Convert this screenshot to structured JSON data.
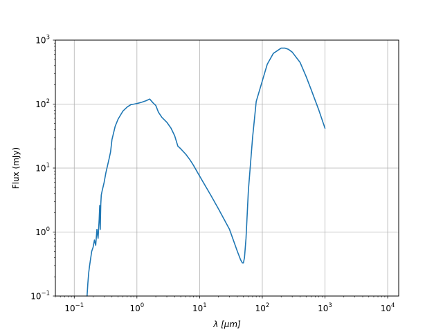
{
  "chart_data": {
    "type": "line",
    "title": "",
    "xlabel": "λ [μm]",
    "ylabel": "Flux (mJy)",
    "x_scale": "log",
    "y_scale": "log",
    "xlim": [
      0.05,
      15000
    ],
    "ylim": [
      0.1,
      1000
    ],
    "grid": true,
    "x_ticks": [
      {
        "value": 0.1,
        "base": "10",
        "exp": "−1"
      },
      {
        "value": 1,
        "base": "10",
        "exp": "0"
      },
      {
        "value": 10,
        "base": "10",
        "exp": "1"
      },
      {
        "value": 100,
        "base": "10",
        "exp": "2"
      },
      {
        "value": 1000,
        "base": "10",
        "exp": "3"
      },
      {
        "value": 10000,
        "base": "10",
        "exp": "4"
      }
    ],
    "y_ticks": [
      {
        "value": 0.1,
        "base": "10",
        "exp": "−1"
      },
      {
        "value": 1,
        "base": "10",
        "exp": "0"
      },
      {
        "value": 10,
        "base": "10",
        "exp": "1"
      },
      {
        "value": 100,
        "base": "10",
        "exp": "2"
      },
      {
        "value": 1000,
        "base": "10",
        "exp": "3"
      }
    ],
    "series": [
      {
        "color": "#1f77b4",
        "x": [
          0.16,
          0.165,
          0.17,
          0.175,
          0.18,
          0.185,
          0.19,
          0.2,
          0.21,
          0.22,
          0.23,
          0.24,
          0.25,
          0.255,
          0.26,
          0.265,
          0.27,
          0.28,
          0.29,
          0.3,
          0.32,
          0.34,
          0.36,
          0.38,
          0.4,
          0.42,
          0.45,
          0.5,
          0.55,
          0.6,
          0.7,
          0.8,
          0.9,
          1.0,
          1.2,
          1.4,
          1.6,
          1.8,
          2.0,
          2.2,
          2.5,
          3.0,
          3.5,
          4.0,
          4.5,
          5.0,
          6.0,
          7.0,
          8.0,
          10,
          15,
          20,
          30,
          40,
          45,
          48,
          50,
          52,
          55,
          60,
          70,
          80,
          100,
          120,
          150,
          200,
          230,
          260,
          300,
          400,
          500,
          600,
          800,
          1000
        ],
        "y": [
          0.1,
          0.16,
          0.23,
          0.29,
          0.35,
          0.42,
          0.5,
          0.58,
          0.75,
          0.62,
          1.1,
          0.8,
          1.6,
          2.6,
          1.1,
          2.7,
          3.8,
          4.5,
          5.2,
          6.0,
          8.5,
          11,
          14,
          18,
          28,
          34,
          45,
          58,
          68,
          78,
          90,
          98,
          100,
          102,
          107,
          113,
          120,
          105,
          95,
          75,
          62,
          52,
          42,
          32,
          22,
          20,
          16.5,
          13.5,
          11,
          7.5,
          3.8,
          2.3,
          1.1,
          0.5,
          0.37,
          0.33,
          0.33,
          0.4,
          0.8,
          4.5,
          30,
          110,
          230,
          420,
          620,
          750,
          750,
          720,
          650,
          450,
          270,
          170,
          80,
          42
        ]
      }
    ]
  }
}
